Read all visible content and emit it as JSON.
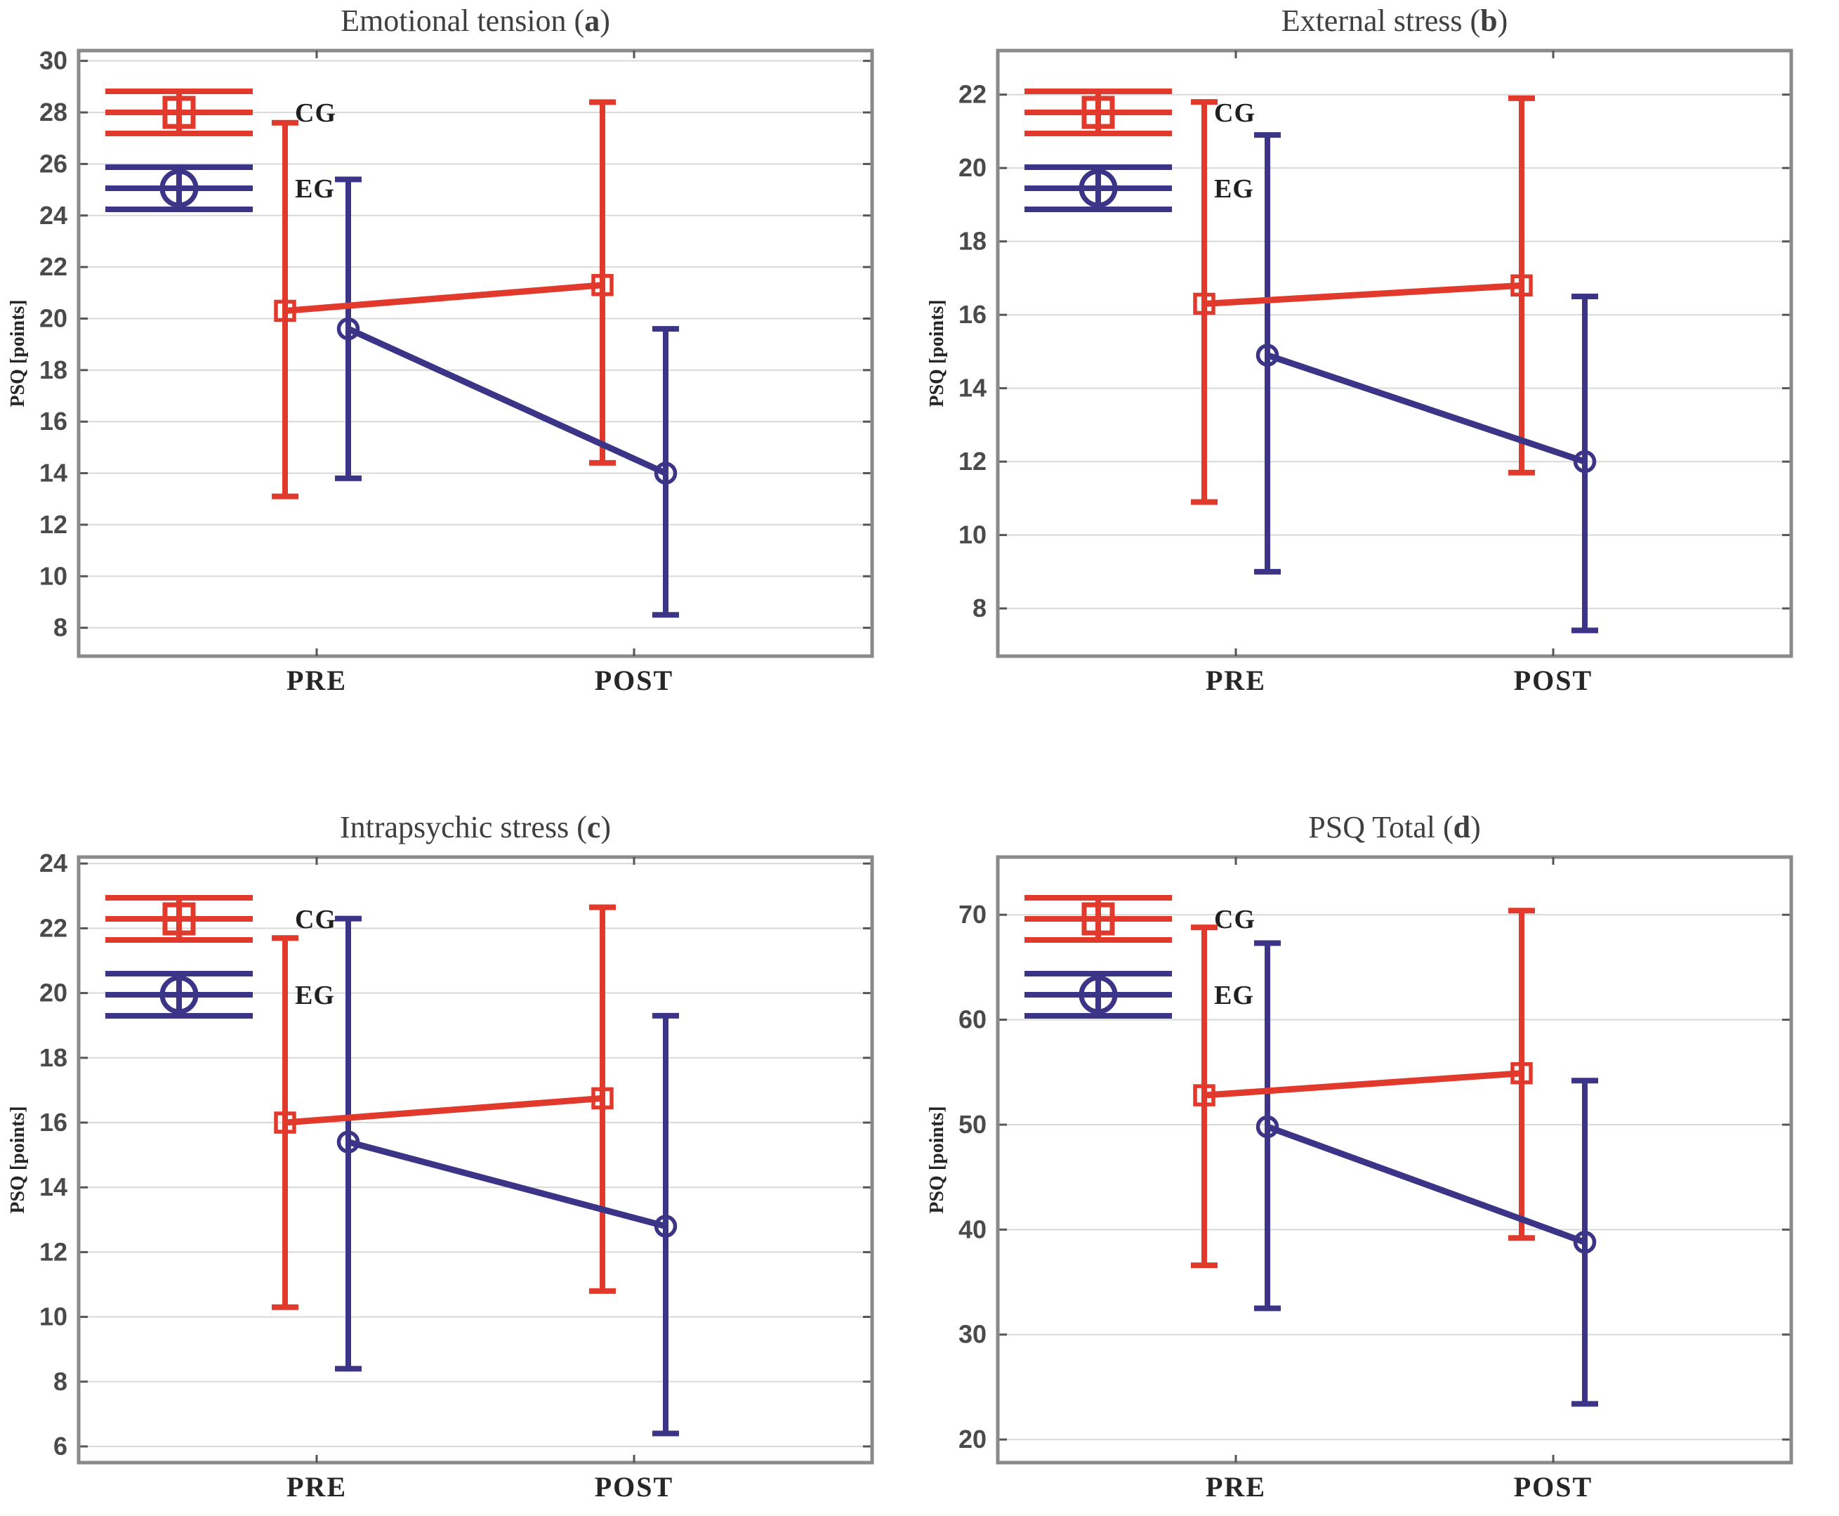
{
  "figure": {
    "background": "#ffffff",
    "colors": {
      "cg": "#e13a2c",
      "eg": "#3b3487",
      "grid": "#d9d9d9",
      "frame": "#8a8a8a",
      "tick": "#555555",
      "tick_text": "#4a4a4a",
      "title_text": "#3f3f3f",
      "label_text": "#1f1f1f"
    },
    "legend": {
      "items": [
        {
          "id": "cg",
          "label": "CG",
          "marker": "square"
        },
        {
          "id": "eg",
          "label": "EG",
          "marker": "circle"
        }
      ]
    }
  },
  "chart_data": {
    "type": "line",
    "x_categories": [
      "PRE",
      "POST"
    ],
    "ylabel": "PSQ [points]",
    "legend_position": "top-left-inside",
    "grid": true,
    "panels": [
      {
        "id": "a",
        "title": "Emotional tension",
        "letter": "a",
        "ylim": [
          6.9,
          30.4
        ],
        "yticks": [
          8,
          10,
          12,
          14,
          16,
          18,
          20,
          22,
          24,
          26,
          28,
          30
        ],
        "series": [
          {
            "name": "CG",
            "color_key": "cg",
            "marker": "square",
            "values": [
              20.3,
              21.3
            ],
            "err_low": [
              13.1,
              14.4
            ],
            "err_high": [
              27.6,
              28.4
            ]
          },
          {
            "name": "EG",
            "color_key": "eg",
            "marker": "circle",
            "values": [
              19.6,
              14.0
            ],
            "err_low": [
              13.8,
              8.5
            ],
            "err_high": [
              25.4,
              19.6
            ]
          }
        ]
      },
      {
        "id": "b",
        "title": "External stress",
        "letter": "b",
        "ylim": [
          6.7,
          23.2
        ],
        "yticks": [
          8,
          10,
          12,
          14,
          16,
          18,
          20,
          22
        ],
        "series": [
          {
            "name": "CG",
            "color_key": "cg",
            "marker": "square",
            "values": [
              16.3,
              16.8
            ],
            "err_low": [
              10.9,
              11.7
            ],
            "err_high": [
              21.8,
              21.9
            ]
          },
          {
            "name": "EG",
            "color_key": "eg",
            "marker": "circle",
            "values": [
              14.9,
              12.0
            ],
            "err_low": [
              9.0,
              7.4
            ],
            "err_high": [
              20.9,
              16.5
            ]
          }
        ]
      },
      {
        "id": "c",
        "title": "Intrapsychic stress",
        "letter": "c",
        "ylim": [
          5.5,
          24.2
        ],
        "yticks": [
          6,
          8,
          10,
          12,
          14,
          16,
          18,
          20,
          22,
          24
        ],
        "series": [
          {
            "name": "CG",
            "color_key": "cg",
            "marker": "square",
            "values": [
              16.0,
              16.75
            ],
            "err_low": [
              10.3,
              10.8
            ],
            "err_high": [
              21.7,
              22.65
            ]
          },
          {
            "name": "EG",
            "color_key": "eg",
            "marker": "circle",
            "values": [
              15.4,
              12.8
            ],
            "err_low": [
              8.4,
              6.4
            ],
            "err_high": [
              22.3,
              19.3
            ]
          }
        ]
      },
      {
        "id": "d",
        "title": "PSQ Total",
        "letter": "d",
        "ylim": [
          17.8,
          75.5
        ],
        "yticks": [
          20,
          30,
          40,
          50,
          60,
          70
        ],
        "series": [
          {
            "name": "CG",
            "color_key": "cg",
            "marker": "square",
            "values": [
              52.8,
              54.9
            ],
            "err_low": [
              36.6,
              39.2
            ],
            "err_high": [
              68.8,
              70.4
            ]
          },
          {
            "name": "EG",
            "color_key": "eg",
            "marker": "circle",
            "values": [
              49.8,
              38.8
            ],
            "err_low": [
              32.5,
              23.4
            ],
            "err_high": [
              67.3,
              54.2
            ]
          }
        ]
      }
    ]
  }
}
